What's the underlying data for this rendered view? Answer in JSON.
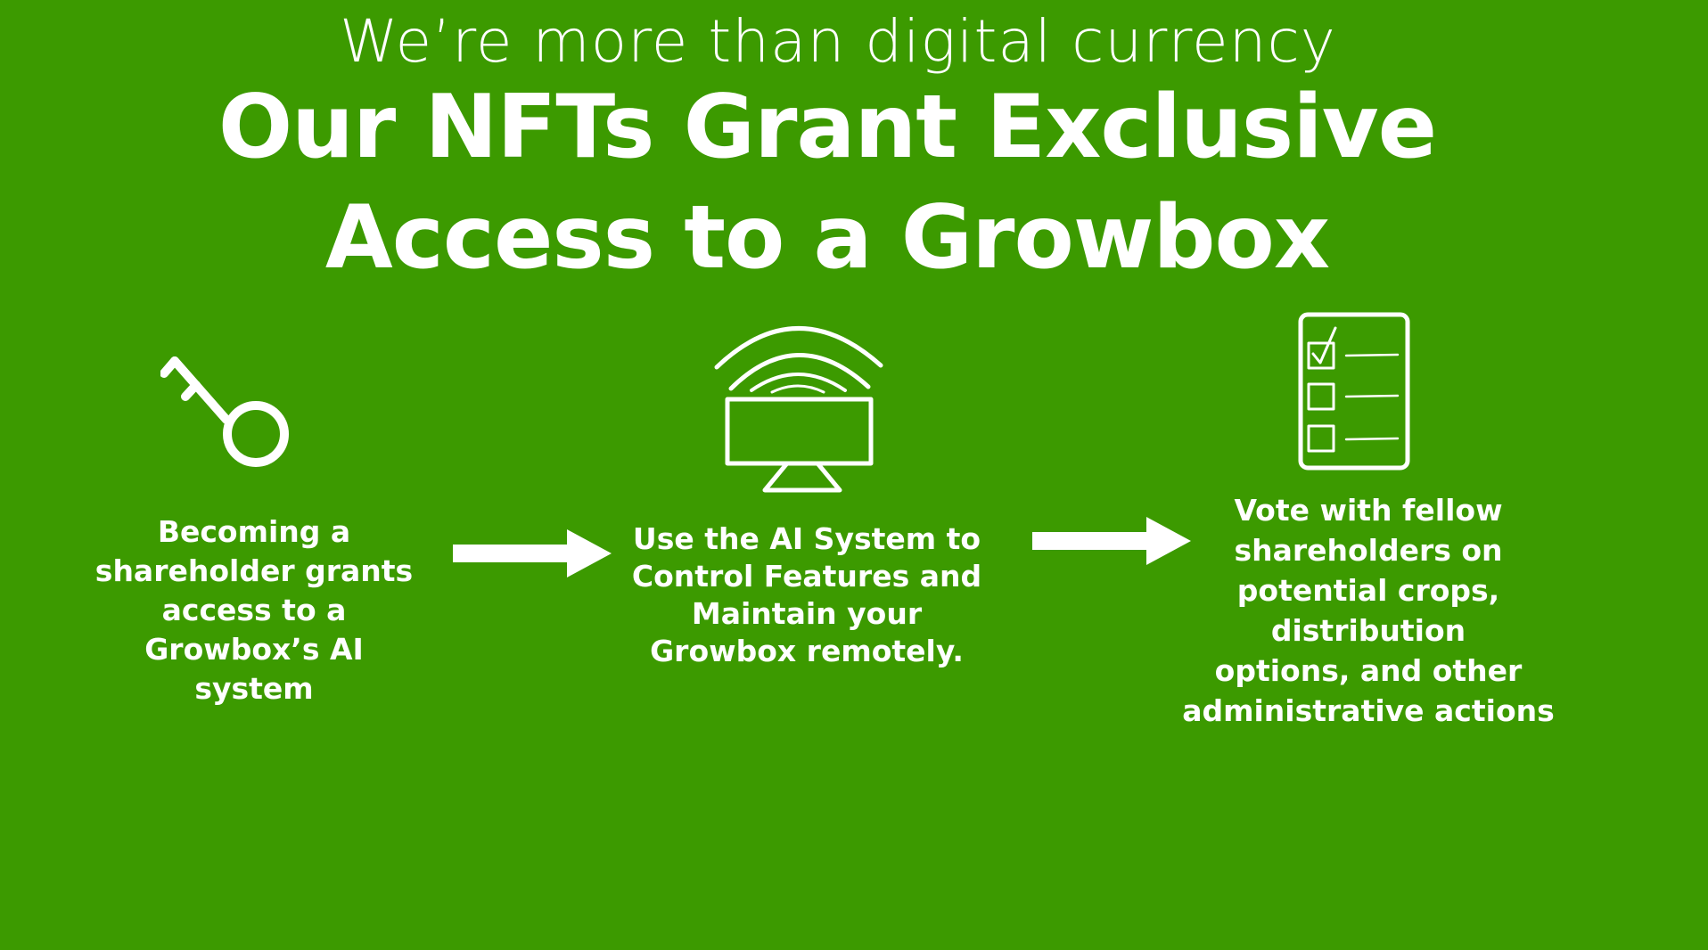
{
  "header": {
    "subtitle": "We’re more than digital currency",
    "title_line1": "Our NFTs Grant Exclusive",
    "title_line2": "Access to a Growbox"
  },
  "colors": {
    "background": "#3c9a00",
    "foreground": "#ffffff"
  },
  "steps": [
    {
      "icon": "key-icon",
      "text": "Becoming a\nshareholder grants\naccess to a\nGrowbox’s AI\nsystem"
    },
    {
      "icon": "remote-monitor-icon",
      "text": "Use the AI System to\nControl Features and\nMaintain your\nGrowbox remotely."
    },
    {
      "icon": "checklist-icon",
      "text": "Vote with fellow\nshareholders on\npotential crops,\ndistribution\noptions, and other\nadministrative actions"
    }
  ]
}
